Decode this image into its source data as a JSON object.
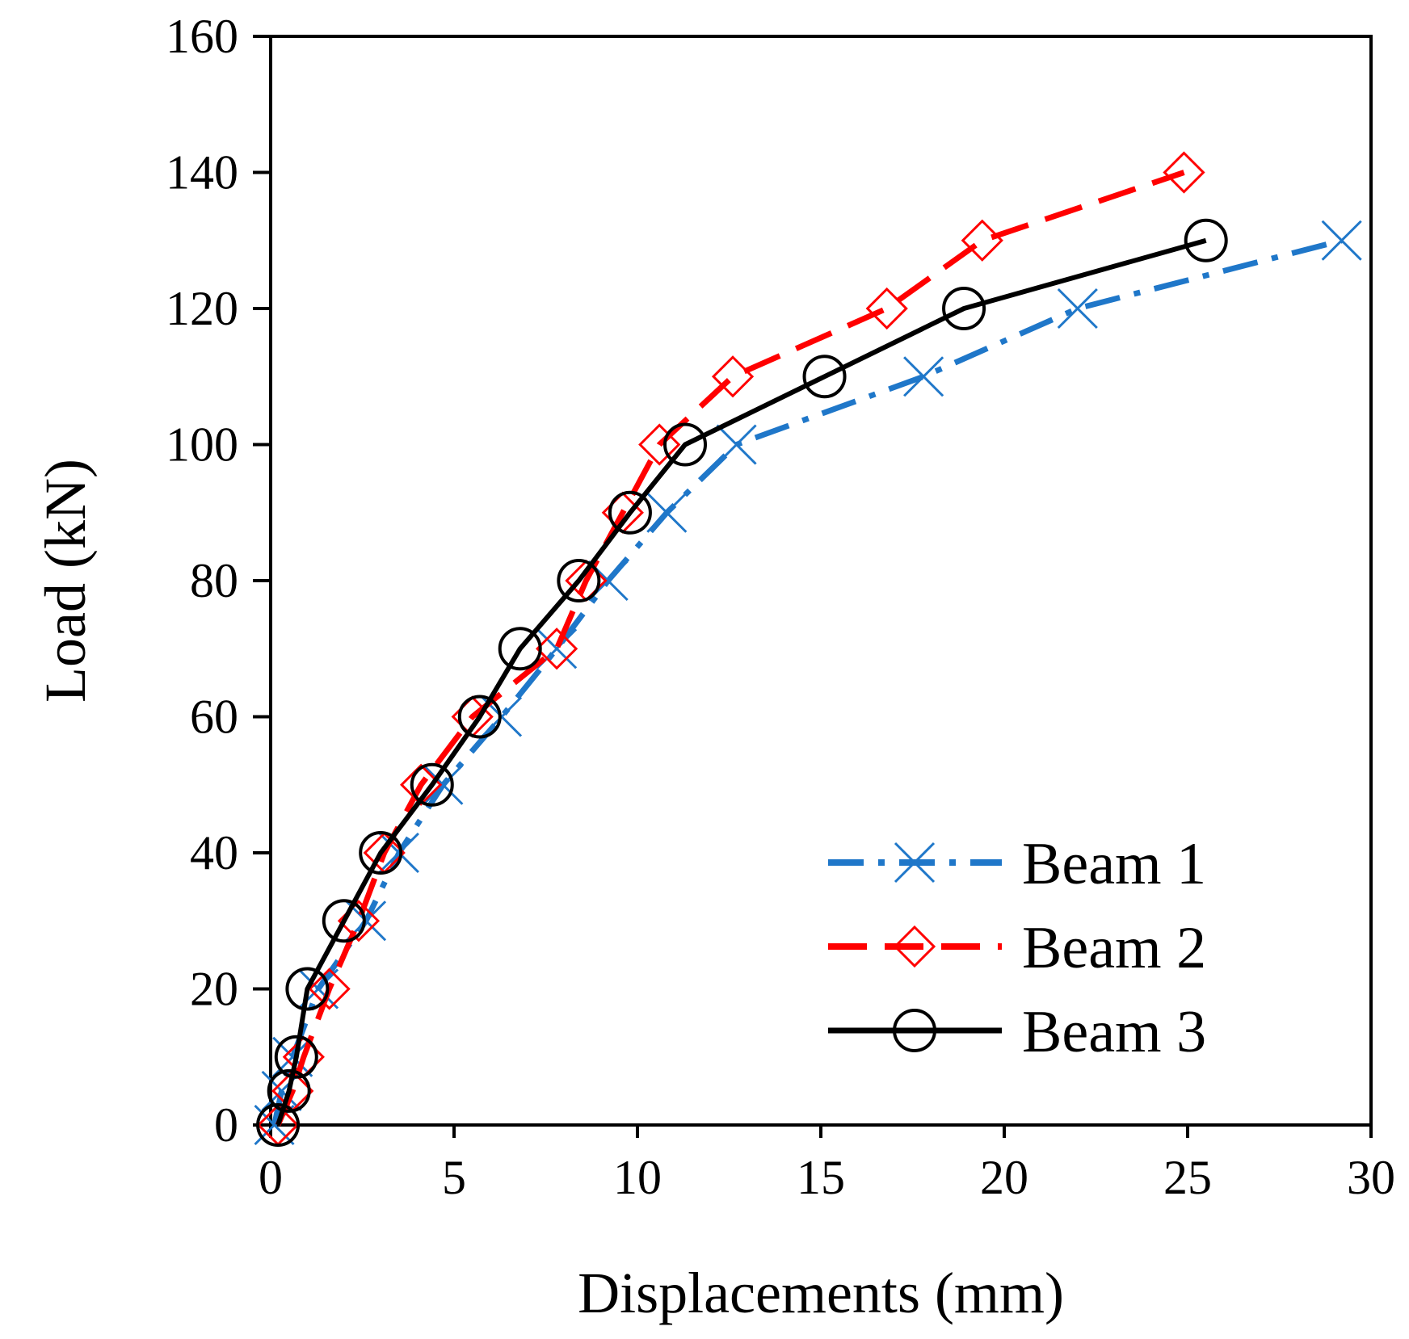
{
  "chart_data": {
    "type": "line",
    "title": "",
    "xlabel": "Displacements (mm)",
    "ylabel": "Load (kN)",
    "xlim": [
      0,
      30
    ],
    "ylim": [
      0,
      160
    ],
    "xticks": [
      0,
      5,
      10,
      15,
      20,
      25,
      30
    ],
    "yticks": [
      0,
      20,
      40,
      60,
      80,
      100,
      120,
      140,
      160
    ],
    "grid": false,
    "legend_position": "bottom-right",
    "series": [
      {
        "name": "Beam 1",
        "color": "#1f77c9",
        "line_style": "dash-dot",
        "marker": "x",
        "points": [
          [
            0.1,
            0
          ],
          [
            0.3,
            5
          ],
          [
            0.6,
            10
          ],
          [
            1.3,
            20
          ],
          [
            2.6,
            30
          ],
          [
            3.5,
            40
          ],
          [
            4.7,
            50
          ],
          [
            6.3,
            60
          ],
          [
            7.8,
            70
          ],
          [
            9.2,
            80
          ],
          [
            10.8,
            90
          ],
          [
            12.7,
            100
          ],
          [
            17.8,
            110
          ],
          [
            22.0,
            120
          ],
          [
            29.2,
            130
          ]
        ]
      },
      {
        "name": "Beam 2",
        "color": "#ff0000",
        "line_style": "dashed",
        "marker": "diamond",
        "points": [
          [
            0.2,
            0
          ],
          [
            0.6,
            5
          ],
          [
            0.9,
            10
          ],
          [
            1.6,
            20
          ],
          [
            2.4,
            30
          ],
          [
            3.1,
            40
          ],
          [
            4.1,
            50
          ],
          [
            5.5,
            60
          ],
          [
            7.8,
            70
          ],
          [
            8.6,
            80
          ],
          [
            9.6,
            90
          ],
          [
            10.6,
            100
          ],
          [
            12.6,
            110
          ],
          [
            16.8,
            120
          ],
          [
            19.4,
            130
          ],
          [
            24.9,
            140
          ]
        ]
      },
      {
        "name": "Beam 3",
        "color": "#000000",
        "line_style": "solid",
        "marker": "circle",
        "points": [
          [
            0.2,
            0
          ],
          [
            0.5,
            5
          ],
          [
            0.7,
            10
          ],
          [
            1.0,
            20
          ],
          [
            2.0,
            30
          ],
          [
            3.0,
            40
          ],
          [
            4.4,
            50
          ],
          [
            5.7,
            60
          ],
          [
            6.8,
            70
          ],
          [
            8.4,
            80
          ],
          [
            9.8,
            90
          ],
          [
            11.3,
            100
          ],
          [
            15.1,
            110
          ],
          [
            18.9,
            120
          ],
          [
            25.5,
            130
          ]
        ]
      }
    ]
  }
}
